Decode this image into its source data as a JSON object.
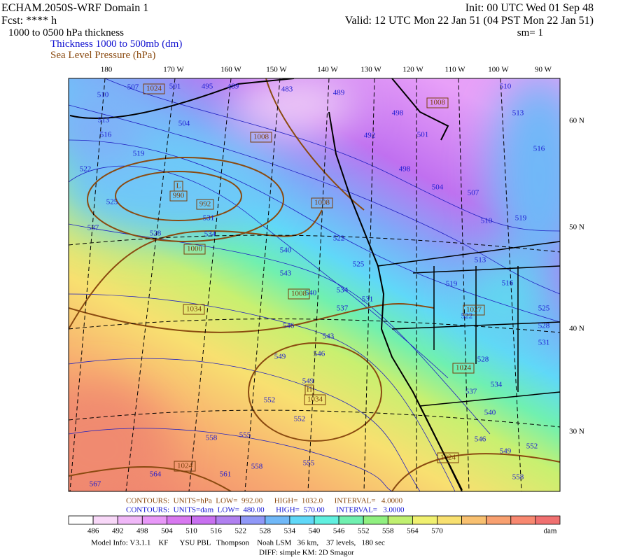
{
  "header": {
    "model": "ECHAM.2050S-WRF Domain 1",
    "fcst": "Fcst: **** h",
    "field": "1000 to 0500 hPa thickness",
    "thickness_line": "Thickness 1000 to 500mb (dm)",
    "slp_line": "Sea Level Pressure (hPa)",
    "init": "Init: 00 UTC Wed 01 Sep 48",
    "valid": "Valid: 12 UTC Mon 22 Jan 51 (04 PST Mon 22 Jan 51)",
    "sm": "sm= 1"
  },
  "map": {
    "lon_labels": [
      "180",
      "170 W",
      "160 W",
      "150 W",
      "140 W",
      "130 W",
      "120 W",
      "110 W",
      "100 W",
      "90 W"
    ],
    "lat_labels": [
      "60 N",
      "50 N",
      "40 N",
      "30 N"
    ],
    "thickness_labels": [
      "510",
      "507",
      "501",
      "495",
      "489",
      "483",
      "489",
      "498",
      "492",
      "501",
      "498",
      "504",
      "507",
      "510",
      "519",
      "510",
      "513",
      "516",
      "504",
      "513",
      "516",
      "519",
      "522",
      "525",
      "531",
      "534",
      "537",
      "528",
      "540",
      "543",
      "522",
      "525",
      "534",
      "531",
      "537",
      "546",
      "543",
      "546",
      "549",
      "549",
      "552",
      "552",
      "555",
      "558",
      "558",
      "555",
      "561",
      "564",
      "567",
      "513",
      "516",
      "519",
      "522",
      "525",
      "528",
      "534",
      "537",
      "540",
      "546",
      "549",
      "552",
      "528",
      "531",
      "558",
      "540"
    ],
    "pressure_labels": [
      "1024",
      "1008",
      "1008",
      "992",
      "L",
      "990",
      "1000",
      "1034",
      "1008",
      "H",
      "1034",
      "1024",
      "1024",
      "1008",
      "1027",
      "1024"
    ]
  },
  "colorbar": {
    "labels": [
      "486",
      "492",
      "498",
      "504",
      "510",
      "516",
      "522",
      "528",
      "534",
      "540",
      "546",
      "552",
      "558",
      "564",
      "570"
    ],
    "unit": "dam",
    "colors": [
      "#ffffff",
      "#f8d8f8",
      "#f0b8f8",
      "#e898f8",
      "#d878f0",
      "#c870f0",
      "#b080f0",
      "#9098f8",
      "#70b8f8",
      "#60d8f8",
      "#60f0e0",
      "#70f0b0",
      "#90f080",
      "#c0f070",
      "#f0f070",
      "#f8e070",
      "#f8c070",
      "#f8a070",
      "#f88870",
      "#f07070"
    ]
  },
  "footer": {
    "contours_hpa": "CONTOURS:  UNITS=hPa  LOW=  992.00      HIGH=  1032.0      INTERVAL=   4.0000",
    "contours_dam": "CONTOURS:  UNITS=dam  LOW=  480.00      HIGH=  570.00      INTERVAL=   3.0000",
    "model_info": "Model Info: V3.1.1    KF      YSU PBL   Thompson    Noah LSM   36 km,    37 levels,   180 sec",
    "diff": "DIFF: simple KM: 2D Smagor"
  }
}
